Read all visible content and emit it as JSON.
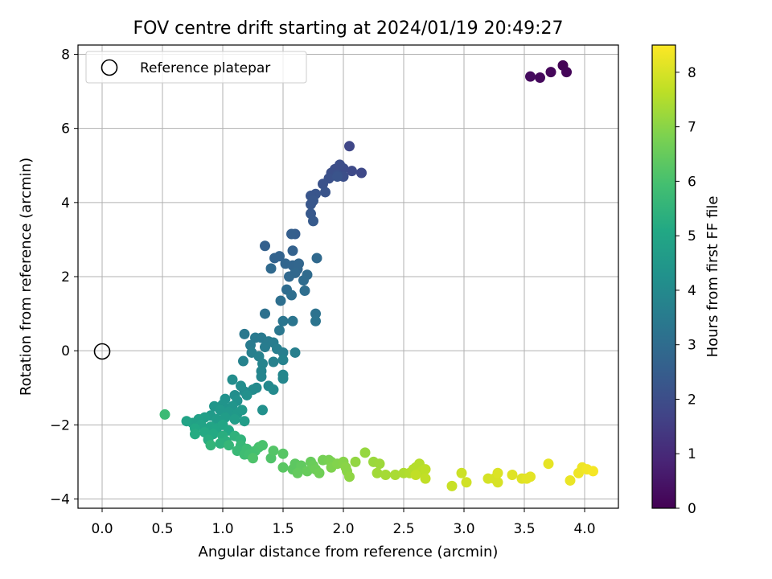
{
  "chart_data": {
    "type": "scatter",
    "title": "FOV centre drift starting at 2024/01/19 20:49:27",
    "xlabel": "Angular distance from reference (arcmin)",
    "ylabel": "Rotation from reference (arcmin)",
    "xlim": [
      -0.2,
      4.28
    ],
    "ylim": [
      -4.25,
      8.25
    ],
    "xticks": [
      "0.0",
      "0.5",
      "1.0",
      "1.5",
      "2.0",
      "2.5",
      "3.0",
      "3.5",
      "4.0"
    ],
    "yticks": [
      "−4",
      "−2",
      "0",
      "2",
      "4",
      "6",
      "8"
    ],
    "grid": true,
    "legend": {
      "position": "top-left",
      "label": "Reference platepar"
    },
    "reference_point": {
      "x": 0.0,
      "y": 0.0
    },
    "colorbar": {
      "label": "Hours from first FF file",
      "range": [
        0,
        8.5
      ],
      "ticks": [
        "0",
        "1",
        "2",
        "3",
        "4",
        "5",
        "6",
        "7",
        "8"
      ],
      "colormap": "viridis"
    },
    "points": [
      [
        3.82,
        7.7,
        0.05
      ],
      [
        3.85,
        7.52,
        0.1
      ],
      [
        3.72,
        7.52,
        0.15
      ],
      [
        3.63,
        7.37,
        0.2
      ],
      [
        3.55,
        7.4,
        0.25
      ],
      [
        2.05,
        5.52,
        1.8
      ],
      [
        2.15,
        4.8,
        1.85
      ],
      [
        2.07,
        4.85,
        1.9
      ],
      [
        2.0,
        4.92,
        1.95
      ],
      [
        1.97,
        5.02,
        2.0
      ],
      [
        1.93,
        4.9,
        2.0
      ],
      [
        1.9,
        4.8,
        2.05
      ],
      [
        2.0,
        4.7,
        2.05
      ],
      [
        1.95,
        4.75,
        2.1
      ],
      [
        1.88,
        4.65,
        2.1
      ],
      [
        1.83,
        4.5,
        2.15
      ],
      [
        1.95,
        4.7,
        2.2
      ],
      [
        1.85,
        4.28,
        2.2
      ],
      [
        1.77,
        4.23,
        2.25
      ],
      [
        1.73,
        4.18,
        2.25
      ],
      [
        1.75,
        4.05,
        2.3
      ],
      [
        1.73,
        3.95,
        2.3
      ],
      [
        1.73,
        3.7,
        2.35
      ],
      [
        1.75,
        3.5,
        2.4
      ],
      [
        1.6,
        3.15,
        2.5
      ],
      [
        1.57,
        3.15,
        2.55
      ],
      [
        1.35,
        2.83,
        2.6
      ],
      [
        1.58,
        2.7,
        2.65
      ],
      [
        1.47,
        2.55,
        2.7
      ],
      [
        1.43,
        2.5,
        2.7
      ],
      [
        1.52,
        2.35,
        2.75
      ],
      [
        1.58,
        2.3,
        2.75
      ],
      [
        1.63,
        2.35,
        2.8
      ],
      [
        1.62,
        2.2,
        2.8
      ],
      [
        1.6,
        2.1,
        2.85
      ],
      [
        1.55,
        2.0,
        2.85
      ],
      [
        1.4,
        2.22,
        2.9
      ],
      [
        1.78,
        2.5,
        2.9
      ],
      [
        1.7,
        2.05,
        2.95
      ],
      [
        1.67,
        1.9,
        3.0
      ],
      [
        1.53,
        1.65,
        3.0
      ],
      [
        1.57,
        1.5,
        3.05
      ],
      [
        1.68,
        1.62,
        3.05
      ],
      [
        1.48,
        1.35,
        3.1
      ],
      [
        1.35,
        1.0,
        3.15
      ],
      [
        1.77,
        1.0,
        3.2
      ],
      [
        1.77,
        0.8,
        3.25
      ],
      [
        1.5,
        0.8,
        3.3
      ],
      [
        1.58,
        0.8,
        3.3
      ],
      [
        1.47,
        0.55,
        3.35
      ],
      [
        1.18,
        0.45,
        3.4
      ],
      [
        1.27,
        0.35,
        3.45
      ],
      [
        1.32,
        0.35,
        3.45
      ],
      [
        1.23,
        0.15,
        3.5
      ],
      [
        1.38,
        0.25,
        3.5
      ],
      [
        1.42,
        0.22,
        3.55
      ],
      [
        1.35,
        0.1,
        3.55
      ],
      [
        1.45,
        0.05,
        3.6
      ],
      [
        1.5,
        -0.05,
        3.6
      ],
      [
        1.6,
        -0.05,
        3.65
      ],
      [
        1.24,
        -0.05,
        3.65
      ],
      [
        1.3,
        -0.15,
        3.7
      ],
      [
        1.42,
        -0.3,
        3.7
      ],
      [
        1.5,
        -0.25,
        3.75
      ],
      [
        1.17,
        -0.28,
        3.75
      ],
      [
        1.33,
        -0.35,
        3.8
      ],
      [
        1.32,
        -0.55,
        3.85
      ],
      [
        1.32,
        -0.7,
        3.85
      ],
      [
        1.5,
        -0.65,
        3.9
      ],
      [
        1.5,
        -0.75,
        3.9
      ],
      [
        1.38,
        -0.95,
        3.95
      ],
      [
        1.42,
        -1.05,
        4.0
      ],
      [
        1.28,
        -1.0,
        4.0
      ],
      [
        1.25,
        -1.05,
        4.05
      ],
      [
        1.18,
        -1.1,
        4.05
      ],
      [
        1.08,
        -0.78,
        4.1
      ],
      [
        1.15,
        -0.95,
        4.1
      ],
      [
        1.1,
        -1.2,
        4.15
      ],
      [
        1.33,
        -1.6,
        4.2
      ],
      [
        1.2,
        -1.2,
        4.2
      ],
      [
        1.12,
        -1.35,
        4.25
      ],
      [
        1.02,
        -1.3,
        4.3
      ],
      [
        1.0,
        -1.45,
        4.35
      ],
      [
        1.08,
        -1.5,
        4.4
      ],
      [
        0.93,
        -1.5,
        4.45
      ],
      [
        0.98,
        -1.6,
        4.5
      ],
      [
        1.05,
        -1.65,
        4.5
      ],
      [
        1.12,
        -1.7,
        4.55
      ],
      [
        1.16,
        -1.6,
        4.55
      ],
      [
        0.9,
        -1.75,
        4.6
      ],
      [
        0.95,
        -1.85,
        4.65
      ],
      [
        1.02,
        -1.8,
        4.65
      ],
      [
        1.1,
        -1.85,
        4.7
      ],
      [
        1.18,
        -1.9,
        4.7
      ],
      [
        0.85,
        -1.8,
        4.75
      ],
      [
        0.8,
        -1.85,
        4.8
      ],
      [
        0.75,
        -1.95,
        4.85
      ],
      [
        0.7,
        -1.9,
        4.9
      ],
      [
        0.82,
        -2.0,
        4.9
      ],
      [
        0.9,
        -2.05,
        4.95
      ],
      [
        0.95,
        -2.1,
        5.0
      ],
      [
        1.0,
        -2.0,
        5.0
      ],
      [
        1.05,
        -2.15,
        5.05
      ],
      [
        0.77,
        -2.1,
        5.1
      ],
      [
        0.85,
        -2.2,
        5.15
      ],
      [
        0.92,
        -2.25,
        5.15
      ],
      [
        0.77,
        -2.25,
        5.2
      ],
      [
        0.88,
        -2.4,
        5.25
      ],
      [
        1.0,
        -2.3,
        5.3
      ],
      [
        1.03,
        -2.45,
        5.35
      ],
      [
        0.98,
        -2.5,
        5.4
      ],
      [
        1.1,
        -2.3,
        5.45
      ],
      [
        1.15,
        -2.4,
        5.5
      ],
      [
        0.9,
        -2.55,
        5.55
      ],
      [
        1.05,
        -2.55,
        5.6
      ],
      [
        1.15,
        -2.55,
        5.65
      ],
      [
        1.12,
        -2.7,
        5.7
      ],
      [
        0.52,
        -1.72,
        5.75
      ],
      [
        1.2,
        -2.65,
        5.8
      ],
      [
        1.18,
        -2.8,
        5.85
      ],
      [
        1.22,
        -2.8,
        5.9
      ],
      [
        1.27,
        -2.7,
        5.95
      ],
      [
        1.3,
        -2.6,
        6.0
      ],
      [
        1.33,
        -2.55,
        6.05
      ],
      [
        1.25,
        -2.9,
        6.1
      ],
      [
        1.4,
        -2.9,
        6.15
      ],
      [
        1.42,
        -2.7,
        6.2
      ],
      [
        1.5,
        -2.78,
        6.25
      ],
      [
        1.5,
        -3.15,
        6.3
      ],
      [
        1.58,
        -3.2,
        6.35
      ],
      [
        1.6,
        -3.05,
        6.35
      ],
      [
        1.65,
        -3.1,
        6.4
      ],
      [
        1.62,
        -3.3,
        6.45
      ],
      [
        1.7,
        -3.25,
        6.5
      ],
      [
        1.73,
        -3.0,
        6.5
      ],
      [
        1.75,
        -3.1,
        6.55
      ],
      [
        1.77,
        -3.2,
        6.6
      ],
      [
        1.8,
        -3.3,
        6.65
      ],
      [
        1.83,
        -2.95,
        6.7
      ],
      [
        1.88,
        -2.95,
        6.75
      ],
      [
        1.9,
        -3.0,
        6.8
      ],
      [
        1.9,
        -3.15,
        6.85
      ],
      [
        1.95,
        -3.05,
        6.9
      ],
      [
        2.0,
        -3.0,
        6.95
      ],
      [
        2.02,
        -3.15,
        7.0
      ],
      [
        2.03,
        -3.25,
        7.0
      ],
      [
        2.05,
        -3.4,
        7.05
      ],
      [
        2.1,
        -3.0,
        7.1
      ],
      [
        2.18,
        -2.75,
        7.15
      ],
      [
        2.25,
        -3.0,
        7.2
      ],
      [
        2.3,
        -3.05,
        7.25
      ],
      [
        2.28,
        -3.3,
        7.3
      ],
      [
        2.35,
        -3.35,
        7.35
      ],
      [
        2.43,
        -3.35,
        7.4
      ],
      [
        2.5,
        -3.3,
        7.45
      ],
      [
        2.55,
        -3.3,
        7.5
      ],
      [
        2.6,
        -3.15,
        7.5
      ],
      [
        2.63,
        -3.05,
        7.55
      ],
      [
        2.58,
        -3.2,
        7.55
      ],
      [
        2.65,
        -3.25,
        7.6
      ],
      [
        2.68,
        -3.2,
        7.65
      ],
      [
        2.68,
        -3.45,
        7.7
      ],
      [
        2.6,
        -3.35,
        7.7
      ],
      [
        2.9,
        -3.65,
        7.8
      ],
      [
        2.98,
        -3.3,
        7.85
      ],
      [
        3.02,
        -3.55,
        7.9
      ],
      [
        3.2,
        -3.45,
        7.95
      ],
      [
        3.25,
        -3.45,
        8.0
      ],
      [
        3.28,
        -3.55,
        8.0
      ],
      [
        3.28,
        -3.3,
        8.05
      ],
      [
        3.4,
        -3.35,
        8.1
      ],
      [
        3.48,
        -3.45,
        8.1
      ],
      [
        3.52,
        -3.45,
        8.15
      ],
      [
        3.55,
        -3.4,
        8.15
      ],
      [
        3.7,
        -3.05,
        8.2
      ],
      [
        3.88,
        -3.5,
        8.25
      ],
      [
        3.95,
        -3.3,
        8.3
      ],
      [
        3.98,
        -3.15,
        8.3
      ],
      [
        4.02,
        -3.2,
        8.35
      ],
      [
        4.07,
        -3.25,
        8.4
      ]
    ]
  }
}
